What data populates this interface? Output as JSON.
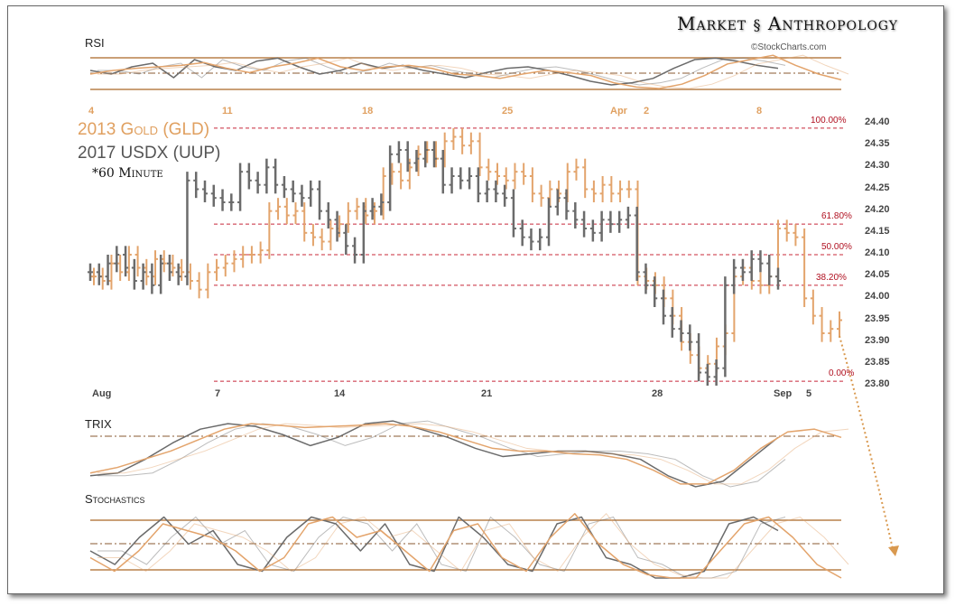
{
  "header": {
    "brand_left": "Market",
    "brand_right": "Anthropology",
    "source": "©StockCharts.com"
  },
  "legend": {
    "series1": "2013 Gold (GLD)",
    "series2": "2017 USDX (UUP)",
    "timeframe": "*60 Minute"
  },
  "colors": {
    "gold": "#e3a46c",
    "usdx": "#6b6b6b",
    "fib": "#c8283a"
  },
  "chart_data": {
    "type": "bar",
    "title": "2013 Gold (GLD) vs 2017 USDX (UUP) *60 Minute",
    "ylim": [
      23.8,
      24.4
    ],
    "y_ticks": [
      "24.40",
      "24.35",
      "24.30",
      "24.25",
      "24.20",
      "24.15",
      "24.10",
      "24.05",
      "24.00",
      "23.95",
      "23.90",
      "23.85",
      "23.80"
    ],
    "x_ticks_bottom": [
      "Aug",
      "7",
      "14",
      "21",
      "28",
      "Sep",
      "5"
    ],
    "x_ticks_top": [
      "4",
      "11",
      "18",
      "25",
      "Apr",
      "2",
      "8"
    ],
    "fib_levels": [
      {
        "label": "100.00%",
        "value": 24.39
      },
      {
        "label": "61.80%",
        "value": 24.17
      },
      {
        "label": "50.00%",
        "value": 24.1
      },
      {
        "label": "38.20%",
        "value": 24.03
      },
      {
        "label": "0.00%",
        "value": 23.81
      }
    ],
    "series": [
      {
        "name": "2017 USDX (UUP)",
        "values": [
          24.06,
          24.05,
          24.08,
          24.1,
          24.07,
          24.04,
          24.06,
          24.03,
          24.08,
          24.06,
          24.05,
          24.27,
          24.25,
          24.24,
          24.23,
          24.22,
          24.22,
          24.29,
          24.27,
          24.26,
          24.3,
          24.26,
          24.25,
          24.24,
          24.23,
          24.25,
          24.2,
          24.18,
          24.15,
          24.12,
          24.1,
          24.2,
          24.21,
          24.22,
          24.33,
          24.34,
          24.31,
          24.32,
          24.34,
          24.32,
          24.26,
          24.28,
          24.27,
          24.28,
          24.24,
          24.25,
          24.24,
          24.23,
          24.16,
          24.14,
          24.13,
          24.14,
          24.21,
          24.23,
          24.2,
          24.18,
          24.16,
          24.15,
          24.18,
          24.17,
          24.18,
          24.19,
          24.06,
          24.03,
          24.0,
          23.96,
          23.93,
          23.92,
          23.9,
          23.83,
          23.82,
          23.84,
          24.03,
          24.07,
          24.06,
          24.09,
          24.08,
          24.05,
          24.04
        ]
      },
      {
        "name": "2013 Gold (GLD)",
        "values": [
          24.05,
          24.04,
          24.08,
          24.06,
          24.1,
          24.07,
          24.05,
          24.09,
          24.08,
          24.07,
          24.06,
          24.04,
          24.02,
          24.06,
          24.07,
          24.08,
          24.09,
          24.1,
          24.1,
          24.11,
          24.2,
          24.21,
          24.19,
          24.2,
          24.15,
          24.14,
          24.13,
          24.16,
          24.17,
          24.2,
          24.21,
          24.19,
          24.2,
          24.28,
          24.29,
          24.27,
          24.3,
          24.33,
          24.34,
          24.32,
          24.36,
          24.37,
          24.35,
          24.36,
          24.3,
          24.29,
          24.28,
          24.27,
          24.29,
          24.28,
          24.24,
          24.23,
          24.25,
          24.24,
          24.29,
          24.3,
          24.25,
          24.24,
          24.26,
          24.24,
          24.25,
          24.25,
          24.05,
          24.04,
          24.03,
          24.0,
          23.96,
          23.9,
          23.87,
          23.84,
          23.85,
          23.89,
          23.92,
          24.05,
          24.07,
          24.04,
          24.03,
          24.05,
          24.16,
          24.15,
          24.14,
          24.0,
          23.96,
          23.92,
          23.93,
          23.95
        ]
      }
    ],
    "indicators": [
      {
        "name": "RSI",
        "series": [
          {
            "name": "USDX",
            "values": [
              55,
              50,
              60,
              65,
              45,
              70,
              60,
              55,
              68,
              72,
              60,
              50,
              55,
              65,
              58,
              62,
              55,
              50,
              45,
              52,
              58,
              60,
              55,
              48,
              40,
              35,
              38,
              44,
              58,
              70,
              72,
              68,
              62,
              58
            ]
          },
          {
            "name": "Gold",
            "values": [
              50,
              55,
              58,
              60,
              62,
              66,
              58,
              52,
              60,
              65,
              72,
              60,
              55,
              60,
              62,
              58,
              50,
              48,
              44,
              50,
              55,
              52,
              48,
              38,
              32,
              30,
              36,
              48,
              64,
              70,
              76,
              62,
              50,
              42
            ]
          }
        ]
      },
      {
        "name": "TRIX",
        "series": [
          {
            "name": "USDX",
            "values": [
              -40,
              -35,
              -10,
              20,
              45,
              55,
              50,
              35,
              15,
              30,
              55,
              60,
              45,
              30,
              10,
              -5,
              0,
              5,
              5,
              0,
              -10,
              -40,
              -60,
              -50,
              -10,
              30
            ]
          },
          {
            "name": "Gold",
            "values": [
              -35,
              -25,
              -10,
              5,
              25,
              45,
              55,
              52,
              48,
              50,
              52,
              55,
              50,
              40,
              25,
              10,
              5,
              5,
              0,
              -2,
              -10,
              -30,
              -55,
              -55,
              -30,
              10,
              40,
              45,
              30
            ]
          }
        ]
      },
      {
        "name": "Stochastics",
        "series": [
          {
            "name": "USDX",
            "values": [
              40,
              20,
              60,
              90,
              50,
              70,
              20,
              10,
              60,
              90,
              80,
              40,
              80,
              20,
              10,
              90,
              60,
              20,
              10,
              80,
              90,
              30,
              20,
              0,
              0,
              10,
              80,
              90,
              70
            ]
          },
          {
            "name": "Gold",
            "values": [
              30,
              10,
              40,
              80,
              70,
              60,
              40,
              10,
              30,
              80,
              90,
              60,
              70,
              40,
              10,
              70,
              80,
              30,
              10,
              60,
              95,
              50,
              20,
              5,
              0,
              0,
              40,
              80,
              90,
              60,
              20,
              0
            ]
          }
        ]
      }
    ]
  }
}
